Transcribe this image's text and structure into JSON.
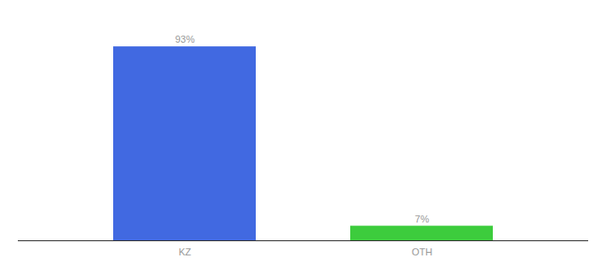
{
  "chart_data": {
    "type": "bar",
    "categories": [
      "KZ",
      "OTH"
    ],
    "values": [
      93,
      7
    ],
    "value_labels": [
      "93%",
      "7%"
    ],
    "colors": [
      "#4169e1",
      "#3dcc3d"
    ],
    "ylim": [
      0,
      105
    ],
    "data_labels": true,
    "tick_labels": "x"
  }
}
